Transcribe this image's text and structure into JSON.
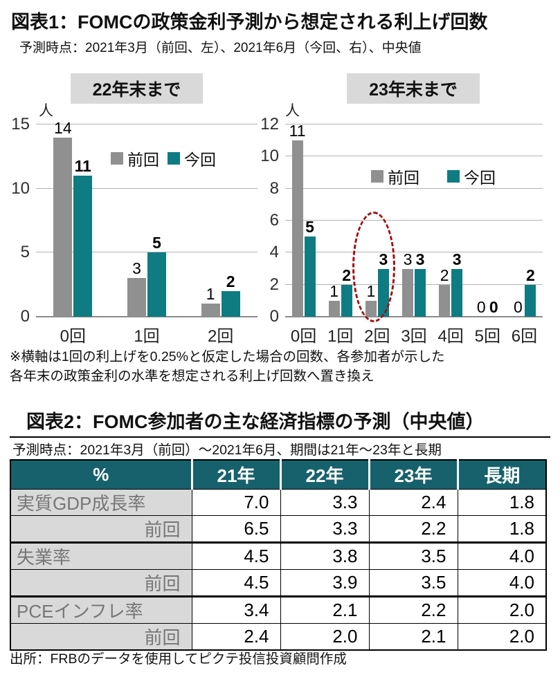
{
  "figure1": {
    "title": "図表1：FOMCの政策金利予測から想定される利上げ回数",
    "subtitle": "予測時点：2021年3月（前回、左）、2021年6月（今回、右）、中央値",
    "footnote_line1": "※横軸は1回の利上げを0.25%と仮定した場合の回数、各参加者が示した",
    "footnote_line2": "各年末の政策金利の水準を想定される利上げ回数へ置き換え"
  },
  "chart_data": [
    {
      "type": "bar",
      "title": "22年末まで",
      "ylabel": "人",
      "categories": [
        "0回",
        "1回",
        "2回"
      ],
      "series": [
        {
          "name": "前回",
          "color": "#909090",
          "values": [
            14,
            3,
            1
          ]
        },
        {
          "name": "今回",
          "color": "#0e7c82",
          "values": [
            11,
            5,
            2
          ]
        }
      ],
      "ylim": [
        0,
        15
      ],
      "yticks": [
        0,
        5,
        10,
        15
      ],
      "grid": true,
      "legend_position": "inside"
    },
    {
      "type": "bar",
      "title": "23年末まで",
      "ylabel": "人",
      "categories": [
        "0回",
        "1回",
        "2回",
        "3回",
        "4回",
        "5回",
        "6回"
      ],
      "series": [
        {
          "name": "前回",
          "color": "#909090",
          "values": [
            11,
            1,
            1,
            3,
            2,
            0,
            0
          ]
        },
        {
          "name": "今回",
          "color": "#0e7c82",
          "values": [
            5,
            2,
            3,
            3,
            3,
            0,
            2
          ]
        }
      ],
      "ylim": [
        0,
        12
      ],
      "yticks": [
        0,
        2,
        4,
        6,
        8,
        10,
        12
      ],
      "grid": true,
      "legend_position": "inside",
      "annotation": {
        "shape": "dashed-ellipse",
        "around_category": "2回",
        "color": "#a50d0d"
      }
    }
  ],
  "figure2": {
    "title": "図表2：FOMC参加者の主な経済指標の予測（中央値）",
    "subtitle": "予測時点：2021年3月（前回）～2021年6月、期間は21年～23年と長期",
    "source": "出所：FRBのデータを使用してピクテ投信投資顧問作成",
    "table": {
      "header": [
        "%",
        "21年",
        "22年",
        "23年",
        "長期"
      ],
      "rows": [
        {
          "label": "実質GDP成長率",
          "label_align": "left",
          "values": [
            "7.0",
            "3.3",
            "2.4",
            "1.8"
          ]
        },
        {
          "label": "前回",
          "label_align": "right",
          "values": [
            "6.5",
            "3.3",
            "2.2",
            "1.8"
          ]
        },
        {
          "label": "失業率",
          "label_align": "left",
          "values": [
            "4.5",
            "3.8",
            "3.5",
            "4.0"
          ]
        },
        {
          "label": "前回",
          "label_align": "right",
          "values": [
            "4.5",
            "3.9",
            "3.5",
            "4.0"
          ]
        },
        {
          "label": "PCEインフレ率",
          "label_align": "left",
          "values": [
            "3.4",
            "2.1",
            "2.2",
            "2.0"
          ]
        },
        {
          "label": "前回",
          "label_align": "right",
          "values": [
            "2.4",
            "2.0",
            "2.1",
            "2.0"
          ]
        }
      ]
    }
  },
  "colors": {
    "previous_series": "#909090",
    "current_series": "#0e7c82",
    "table_header_bg": "#16616c",
    "label_cell_bg": "#d9d9d9",
    "highlight_ellipse": "#a50d0d",
    "chart_title_box_bg": "#d9d9d9"
  }
}
